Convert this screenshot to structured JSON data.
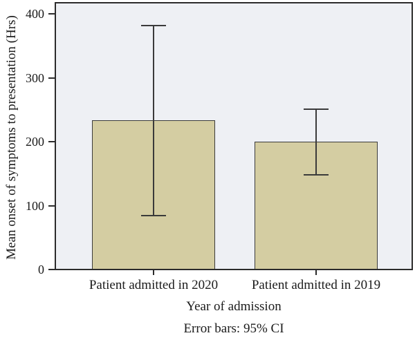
{
  "chart_data": {
    "type": "bar",
    "title": "",
    "categories": [
      "Patient admitted in 2020",
      "Patient admitted in 2019"
    ],
    "values": [
      233,
      200
    ],
    "error_bars": {
      "label": "95% CI",
      "high": [
        382,
        251
      ],
      "low": [
        84,
        148
      ]
    },
    "xlabel": "Year of admission",
    "ylabel": "Mean onset of symptoms to presentation (Hrs)",
    "footnote": "Error bars: 95% CI",
    "ylim": [
      0,
      400
    ],
    "yticks": [
      0,
      100,
      200,
      300,
      400
    ],
    "grid": false,
    "legend": "none",
    "colors": {
      "bar_fill": "#d4cda2",
      "bar_border": "#3a3a3a",
      "error_bar": "#3a3a3a",
      "plot_background": "#eef0f4",
      "frame": "#2b2b2b",
      "text": "#1b1b1b",
      "page_background": "#ffffff"
    }
  }
}
